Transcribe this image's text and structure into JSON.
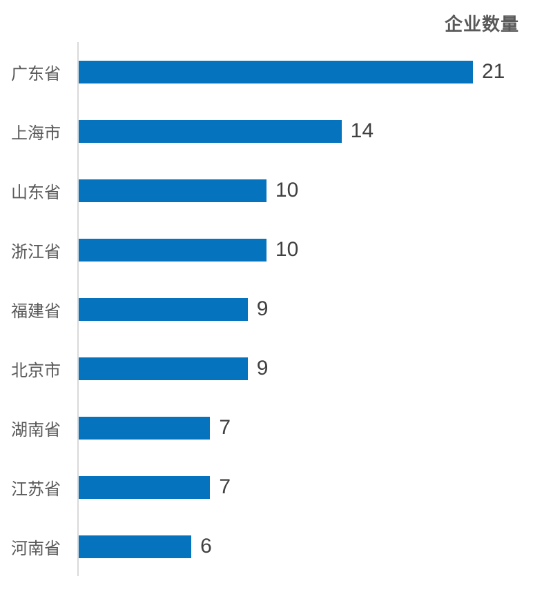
{
  "chart_data": {
    "type": "bar",
    "orientation": "horizontal",
    "title": "企业数量",
    "categories": [
      "广东省",
      "上海市",
      "山东省",
      "浙江省",
      "福建省",
      "北京市",
      "湖南省",
      "江苏省",
      "河南省"
    ],
    "values": [
      21,
      14,
      10,
      10,
      9,
      9,
      7,
      7,
      6
    ],
    "xlabel": "",
    "ylabel": "",
    "xlim": [
      0,
      21
    ],
    "grid": false,
    "legend": false,
    "data_labels": [
      "21",
      "14",
      "10",
      "10",
      "9",
      "9",
      "7",
      "7",
      "6"
    ],
    "colors": {
      "bar": "#0673be",
      "title_text": "#595959",
      "category_text": "#595959",
      "value_text": "#404040",
      "axis_line": "#d9d9d9",
      "background": "#ffffff"
    }
  }
}
